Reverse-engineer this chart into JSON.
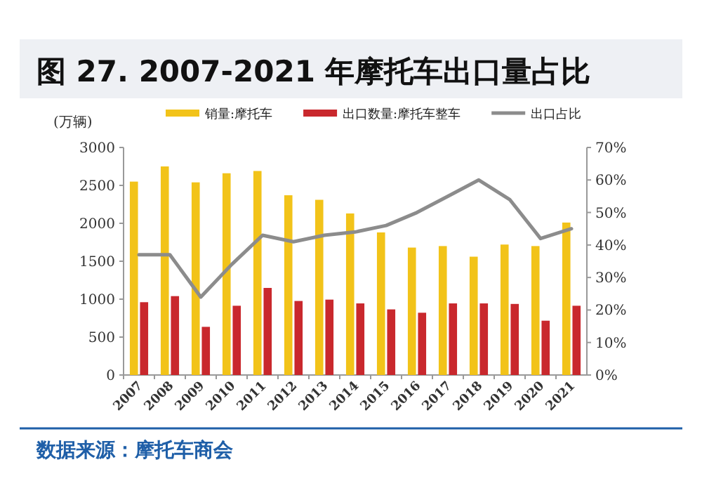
{
  "chart_data": {
    "type": "bar",
    "title": "图 27. 2007-2021 年摩托车出口量占比",
    "ylabel": "(万辆)",
    "categories": [
      "2007",
      "2008",
      "2009",
      "2010",
      "2011",
      "2012",
      "2013",
      "2014",
      "2015",
      "2016",
      "2017",
      "2018",
      "2019",
      "2020",
      "2021"
    ],
    "series": [
      {
        "name": "销量:摩托车",
        "color": "#f2c319",
        "values": [
          2550,
          2750,
          2540,
          2660,
          2690,
          2370,
          2310,
          2130,
          1880,
          1680,
          1700,
          1560,
          1720,
          1700,
          2010
        ]
      },
      {
        "name": "出口数量:摩托车整车",
        "color": "#c9282d",
        "values": [
          960,
          1040,
          635,
          913,
          1148,
          976,
          994,
          944,
          865,
          821,
          944,
          944,
          937,
          716,
          913
        ]
      },
      {
        "name": "出口占比",
        "type": "line",
        "axis": "y2",
        "color": "#8c8c8c",
        "values": [
          37,
          37,
          24,
          34,
          43,
          41,
          43,
          44,
          46,
          50,
          55,
          60,
          54,
          42,
          45
        ]
      }
    ],
    "ylim": [
      0,
      3000
    ],
    "yticks": [
      0,
      500,
      1000,
      1500,
      2000,
      2500,
      3000
    ],
    "y2lim": [
      0,
      70
    ],
    "y2ticks": [
      {
        "value": 0,
        "label": "0%"
      },
      {
        "value": 10,
        "label": "10%"
      },
      {
        "value": 20,
        "label": "20%"
      },
      {
        "value": 30,
        "label": "30%"
      },
      {
        "value": 40,
        "label": "40%"
      },
      {
        "value": 50,
        "label": "50%"
      },
      {
        "value": 60,
        "label": "60%"
      },
      {
        "value": 70,
        "label": "70%"
      }
    ],
    "legend": "top",
    "grid": false,
    "annotations": [
      "数据来源：摩托车商会"
    ]
  }
}
